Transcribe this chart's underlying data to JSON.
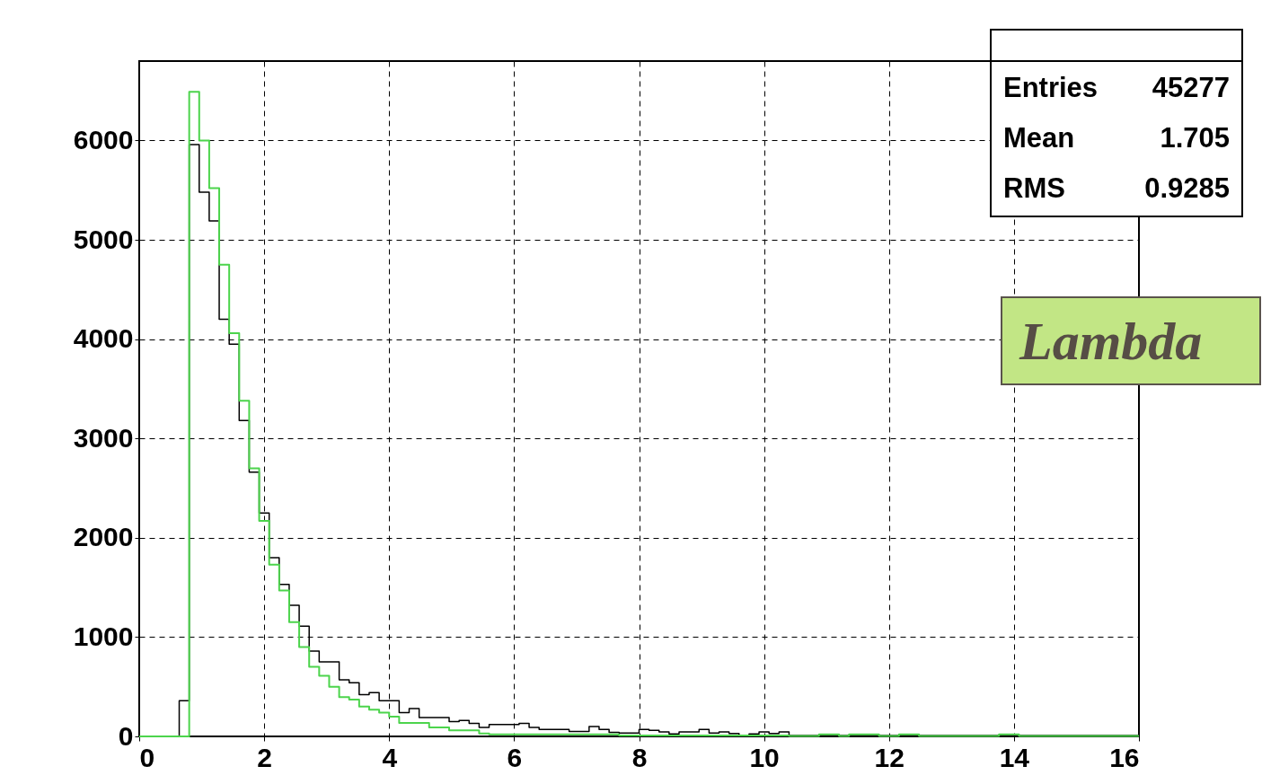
{
  "chart_data": {
    "type": "histogram",
    "bins": [
      0,
      0.16,
      0.32,
      0.48,
      0.64,
      0.8,
      0.96,
      1.12,
      1.28,
      1.44,
      1.6,
      1.76,
      1.92,
      2.08,
      2.24,
      2.4,
      2.56,
      2.72,
      2.88,
      3.04,
      3.2,
      3.36,
      3.52,
      3.68,
      3.84,
      4.0,
      4.16,
      4.32,
      4.48,
      4.64,
      4.8,
      4.96,
      5.12,
      5.28,
      5.44,
      5.6,
      5.76,
      5.92,
      6.08,
      6.24,
      6.4,
      6.56,
      6.72,
      6.88,
      7.04,
      7.2,
      7.36,
      7.52,
      7.68,
      7.84,
      8.0,
      8.16,
      8.32,
      8.48,
      8.64,
      8.8,
      8.96,
      9.12,
      9.28,
      9.44,
      9.6,
      9.76,
      9.92,
      10.08,
      10.24,
      10.4,
      10.56,
      10.72,
      10.88,
      11.04,
      11.2,
      11.36,
      11.52,
      11.68,
      11.84,
      12.0,
      12.16,
      12.32,
      12.48,
      12.64,
      12.8,
      12.96,
      13.12,
      13.28,
      13.44,
      13.6,
      13.76,
      13.92,
      14.08,
      14.24,
      14.4,
      14.56,
      14.72,
      14.88,
      15.04,
      15.2,
      15.36,
      15.52,
      15.68,
      15.84,
      16.0
    ],
    "series": [
      {
        "color": "#000000",
        "values": [
          0,
          0,
          0,
          0,
          360,
          5960,
          5480,
          5190,
          4200,
          3950,
          3180,
          2660,
          2250,
          1800,
          1530,
          1320,
          1110,
          860,
          750,
          750,
          570,
          540,
          420,
          440,
          360,
          360,
          240,
          280,
          190,
          190,
          190,
          150,
          160,
          130,
          90,
          120,
          120,
          120,
          130,
          90,
          70,
          70,
          70,
          50,
          50,
          100,
          70,
          40,
          35,
          35,
          70,
          60,
          45,
          25,
          45,
          45,
          70,
          35,
          45,
          30,
          10,
          25,
          45,
          30,
          45,
          10,
          10,
          10,
          10,
          10,
          10,
          10,
          10,
          10,
          10,
          10,
          10,
          10,
          10,
          10,
          10,
          10,
          10,
          10,
          10,
          10,
          10,
          10,
          10,
          10,
          10,
          10,
          10,
          10,
          10,
          10,
          10,
          10,
          10,
          10
        ]
      },
      {
        "color": "#4cd44c",
        "values": [
          0,
          0,
          0,
          0,
          0,
          6490,
          6000,
          5520,
          4750,
          4060,
          3380,
          2700,
          2170,
          1730,
          1470,
          1150,
          900,
          700,
          610,
          500,
          395,
          370,
          300,
          270,
          240,
          200,
          135,
          135,
          135,
          90,
          90,
          60,
          60,
          60,
          30,
          20,
          20,
          20,
          20,
          20,
          20,
          20,
          20,
          20,
          20,
          20,
          20,
          20,
          10,
          10,
          10,
          10,
          10,
          10,
          10,
          10,
          10,
          10,
          10,
          10,
          10,
          10,
          10,
          10,
          10,
          5,
          5,
          5,
          20,
          20,
          5,
          20,
          20,
          20,
          5,
          5,
          20,
          20,
          5,
          5,
          5,
          5,
          5,
          5,
          5,
          5,
          20,
          20,
          5,
          5,
          5,
          5,
          5,
          5,
          5,
          5,
          5,
          5,
          5,
          5
        ]
      }
    ],
    "xlim": [
      0,
      16
    ],
    "xticks": [
      0,
      2,
      4,
      6,
      8,
      10,
      12,
      14,
      16
    ],
    "ylim": [
      0,
      6800
    ],
    "yticks": [
      0,
      1000,
      2000,
      3000,
      4000,
      5000,
      6000
    ],
    "grid": true,
    "line_style": "dashed",
    "annotations": [
      "Entries 45277",
      "Mean 1.705",
      "RMS 0.9285",
      "Lambda"
    ]
  }
}
